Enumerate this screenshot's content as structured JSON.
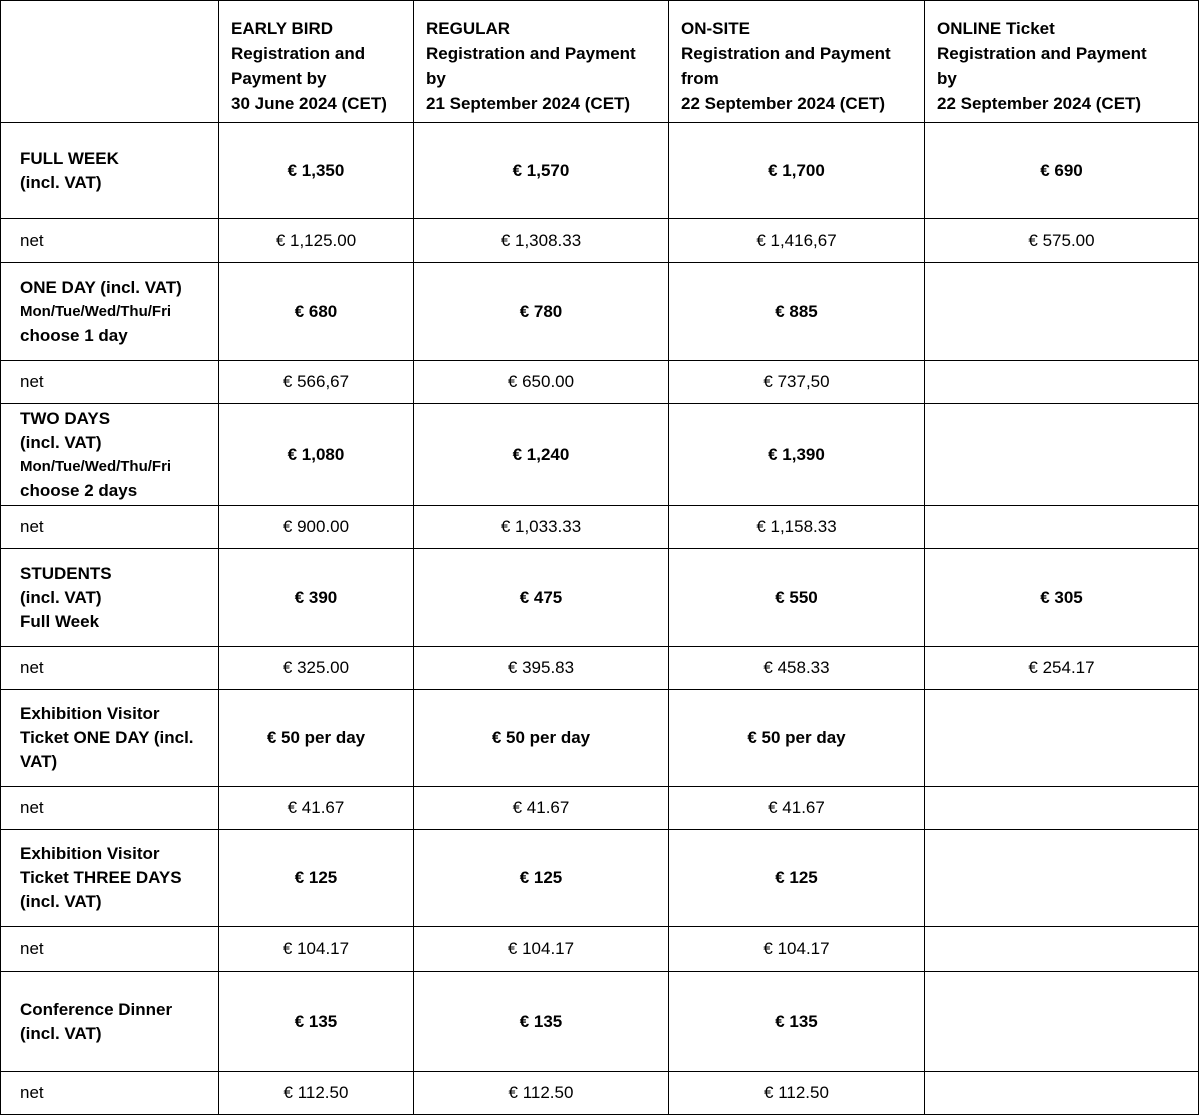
{
  "header": [
    "",
    "EARLY BIRD\nRegistration and\nPayment by\n30 June 2024 (CET)",
    "REGULAR\nRegistration and Payment\nby\n21 September 2024 (CET)",
    "ON-SITE\nRegistration and Payment\nfrom\n22 September 2024 (CET)",
    "ONLINE Ticket\nRegistration and Payment\nby\n22 September 2024 (CET)"
  ],
  "rows": [
    {
      "label": [
        {
          "t": "FULL WEEK"
        },
        {
          "t": "(incl. VAT)"
        }
      ],
      "values": [
        "€ 1,350",
        "€ 1,570",
        "€ 1,700",
        "€ 690"
      ],
      "bold": true
    },
    {
      "label": [
        {
          "t": "net",
          "normal": true
        }
      ],
      "values": [
        "€ 1,125.00",
        "€ 1,308.33",
        "€ 1,416,67",
        "€ 575.00"
      ],
      "bold": false
    },
    {
      "label": [
        {
          "t": "ONE DAY (incl. VAT)"
        },
        {
          "t": "Mon/Tue/Wed/Thu/Fri",
          "small": true
        },
        {
          "t": "choose 1 day"
        }
      ],
      "values": [
        "€ 680",
        "€ 780",
        "€ 885",
        ""
      ],
      "bold": true
    },
    {
      "label": [
        {
          "t": "net",
          "normal": true
        }
      ],
      "values": [
        "€ 566,67",
        "€ 650.00",
        "€ 737,50",
        ""
      ],
      "bold": false
    },
    {
      "label": [
        {
          "t": "TWO DAYS"
        },
        {
          "t": "(incl. VAT)"
        },
        {
          "t": "Mon/Tue/Wed/Thu/Fri",
          "small": true
        },
        {
          "t": "choose 2 days"
        }
      ],
      "values": [
        "€ 1,080",
        "€ 1,240",
        "€ 1,390",
        ""
      ],
      "bold": true
    },
    {
      "label": [
        {
          "t": "net",
          "normal": true
        }
      ],
      "values": [
        "€ 900.00",
        "€ 1,033.33",
        "€ 1,158.33",
        ""
      ],
      "bold": false
    },
    {
      "label": [
        {
          "t": "STUDENTS"
        },
        {
          "t": "(incl. VAT)"
        },
        {
          "t": "Full Week"
        }
      ],
      "values": [
        "€ 390",
        "€ 475",
        "€ 550",
        "€ 305"
      ],
      "bold": true
    },
    {
      "label": [
        {
          "t": "net",
          "normal": true
        }
      ],
      "values": [
        "€ 325.00",
        "€ 395.83",
        "€ 458.33",
        "€ 254.17"
      ],
      "bold": false
    },
    {
      "label": [
        {
          "t": "Exhibition Visitor"
        },
        {
          "t": "Ticket ONE DAY (incl."
        },
        {
          "t": "VAT)"
        }
      ],
      "values": [
        "€ 50 per day",
        "€ 50 per day",
        "€ 50 per day",
        ""
      ],
      "bold": true
    },
    {
      "label": [
        {
          "t": "net",
          "normal": true
        }
      ],
      "values": [
        "€ 41.67",
        "€ 41.67",
        "€ 41.67",
        ""
      ],
      "bold": false
    },
    {
      "label": [
        {
          "t": "Exhibition Visitor"
        },
        {
          "t": "Ticket THREE DAYS"
        },
        {
          "t": "(incl. VAT)"
        }
      ],
      "values": [
        "€ 125",
        "€ 125",
        "€ 125",
        ""
      ],
      "bold": true
    },
    {
      "label": [
        {
          "t": "net",
          "normal": true
        }
      ],
      "values": [
        "€ 104.17",
        "€ 104.17",
        "€ 104.17",
        ""
      ],
      "bold": false
    },
    {
      "label": [
        {
          "t": "Conference Dinner"
        },
        {
          "t": "(incl. VAT)"
        }
      ],
      "values": [
        "€ 135",
        "€ 135",
        "€ 135",
        ""
      ],
      "bold": true
    },
    {
      "label": [
        {
          "t": "net",
          "normal": true
        }
      ],
      "values": [
        "€ 112.50",
        "€ 112.50",
        "€ 112.50",
        ""
      ],
      "bold": false
    }
  ]
}
